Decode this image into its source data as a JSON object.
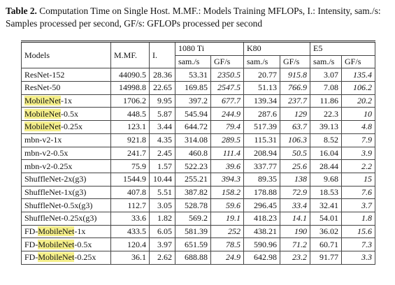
{
  "caption": {
    "label": "Table 2.",
    "text": "Computation Time on Single Host. M.MF.: Models Training MFLOPs, I.: Intensity, sam./s: Samples processed per second, GF/s: GFLOPs processed per second"
  },
  "table": {
    "columns": [
      "Models",
      "M.MF.",
      "I."
    ],
    "groups": [
      "1080 Ti",
      "K80",
      "E5"
    ],
    "subheaders": [
      "sam./s",
      "GF/s",
      "sam./s",
      "GF/s",
      "sam./s",
      "GF/s"
    ],
    "rows": [
      {
        "model": "ResNet-152",
        "cells": [
          "44090.5",
          "28.36",
          "53.31",
          "2350.5",
          "20.77",
          "915.8",
          "3.07",
          "135.4"
        ]
      },
      {
        "model": "ResNet-50",
        "cells": [
          "14998.8",
          "22.65",
          "169.85",
          "2547.5",
          "51.13",
          "766.9",
          "7.08",
          "106.2"
        ]
      },
      {
        "model": {
          "highlighted": "MobileNet",
          "suffix": "-1x"
        },
        "cells": [
          "1706.2",
          "9.95",
          "397.2",
          "677.7",
          "139.34",
          "237.7",
          "11.86",
          "20.2"
        ]
      },
      {
        "model": {
          "highlighted": "MobileNet",
          "suffix": "-0.5x"
        },
        "cells": [
          "448.5",
          "5.87",
          "545.94",
          "244.9",
          "287.6",
          "129",
          "22.3",
          "10"
        ]
      },
      {
        "model": {
          "highlighted": "MobileNet",
          "suffix": "-0.25x"
        },
        "cells": [
          "123.1",
          "3.44",
          "644.72",
          "79.4",
          "517.39",
          "63.7",
          "39.13",
          "4.8"
        ]
      },
      {
        "model": "mbn-v2-1x",
        "cells": [
          "921.8",
          "4.35",
          "314.08",
          "289.5",
          "115.31",
          "106.3",
          "8.52",
          "7.9"
        ]
      },
      {
        "model": "mbn-v2-0.5x",
        "cells": [
          "241.7",
          "2.45",
          "460.8",
          "111.4",
          "208.94",
          "50.5",
          "16.04",
          "3.9"
        ]
      },
      {
        "model": "mbn-v2-0.25x",
        "cells": [
          "75.9",
          "1.57",
          "522.23",
          "39.6",
          "337.77",
          "25.6",
          "28.44",
          "2.2"
        ]
      },
      {
        "model": "ShuffleNet-2x(g3)",
        "cells": [
          "1544.9",
          "10.44",
          "255.21",
          "394.3",
          "89.35",
          "138",
          "9.68",
          "15"
        ]
      },
      {
        "model": "ShuffleNet-1x(g3)",
        "cells": [
          "407.8",
          "5.51",
          "387.82",
          "158.2",
          "178.88",
          "72.9",
          "18.53",
          "7.6"
        ]
      },
      {
        "model": "ShuffleNet-0.5x(g3)",
        "cells": [
          "112.7",
          "3.05",
          "528.78",
          "59.6",
          "296.45",
          "33.4",
          "32.41",
          "3.7"
        ]
      },
      {
        "model": "ShuffleNet-0.25x(g3)",
        "cells": [
          "33.6",
          "1.82",
          "569.2",
          "19.1",
          "418.23",
          "14.1",
          "54.01",
          "1.8"
        ]
      },
      {
        "model": {
          "prefix": "FD-",
          "highlighted": "MobileNet",
          "suffix": "-1x"
        },
        "cells": [
          "433.5",
          "6.05",
          "581.39",
          "252",
          "438.21",
          "190",
          "36.02",
          "15.6"
        ]
      },
      {
        "model": {
          "prefix": "FD-",
          "highlighted": "MobileNet",
          "suffix": "-0.5x"
        },
        "cells": [
          "120.4",
          "3.97",
          "651.59",
          "78.5",
          "590.96",
          "71.2",
          "60.71",
          "7.3"
        ]
      },
      {
        "model": {
          "prefix": "FD-",
          "highlighted": "MobileNet",
          "suffix": "-0.25x"
        },
        "cells": [
          "36.1",
          "2.62",
          "688.88",
          "24.9",
          "642.98",
          "23.2",
          "91.77",
          "3.3"
        ]
      }
    ]
  }
}
